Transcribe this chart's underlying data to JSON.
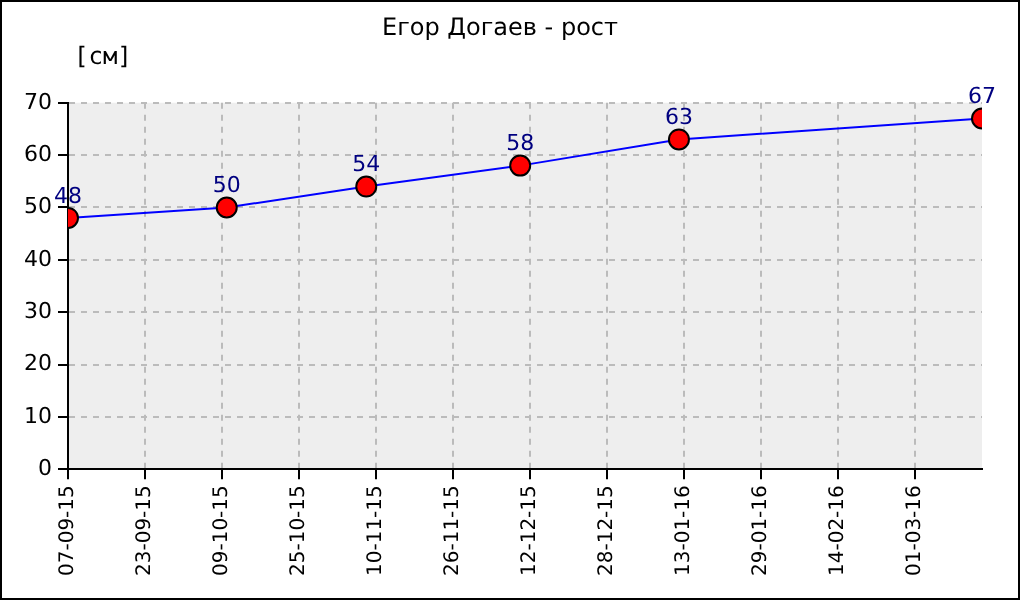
{
  "chart_data": {
    "type": "line",
    "title": "Егор Догаев - рост",
    "ylabel": "[см]",
    "x": [
      "2015-09-07",
      "2015-10-10",
      "2015-11-08",
      "2015-12-10",
      "2016-01-12",
      "2016-03-15"
    ],
    "series": [
      {
        "color": "#0000ff",
        "colors": [
          "#ff0000",
          "#ff0000",
          "#ff0000",
          "#ff0000",
          "#ff0000",
          "#ff0000"
        ],
        "values": [
          48,
          50,
          54,
          58,
          63,
          67
        ]
      }
    ],
    "xlim": [
      "2015-09-07",
      "2016-03-15"
    ],
    "xticks": [
      {
        "value": "2015-09-07",
        "label": "07-09-15"
      },
      {
        "value": "2015-09-23",
        "label": "23-09-15"
      },
      {
        "value": "2015-10-09",
        "label": "09-10-15"
      },
      {
        "value": "2015-10-25",
        "label": "25-10-15"
      },
      {
        "value": "2015-11-10",
        "label": "10-11-15"
      },
      {
        "value": "2015-11-26",
        "label": "26-11-15"
      },
      {
        "value": "2015-12-12",
        "label": "12-12-15"
      },
      {
        "value": "2015-12-28",
        "label": "28-12-15"
      },
      {
        "value": "2016-01-13",
        "label": "13-01-16"
      },
      {
        "value": "2016-01-29",
        "label": "29-01-16"
      },
      {
        "value": "2016-02-14",
        "label": "14-02-16"
      },
      {
        "value": "2016-03-01",
        "label": "01-03-16"
      }
    ],
    "ylim": [
      0,
      70
    ],
    "yticks": [
      0,
      10,
      20,
      30,
      40,
      50,
      60,
      70
    ],
    "grid": true,
    "legend": false,
    "marker": "circle",
    "line_style": "solid",
    "data_labels": true
  }
}
